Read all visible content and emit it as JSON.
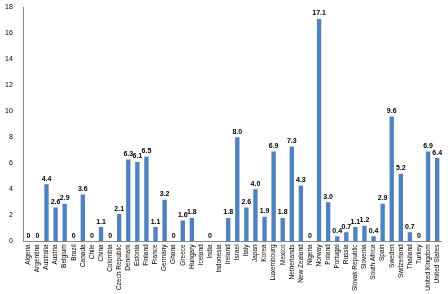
{
  "chart_data": {
    "type": "bar",
    "categories": [
      "Algeria",
      "Argentina",
      "Australia",
      "Austria",
      "Belgium",
      "Brazil",
      "Canada",
      "Chile",
      "China",
      "Colombia",
      "Czech Republic",
      "Denmark",
      "Estonia",
      "Finland",
      "France",
      "Germany",
      "Ghana",
      "Greece",
      "Hungary",
      "Iceland",
      "India",
      "Indonesia",
      "Ireland",
      "Israel",
      "Italy",
      "Japan",
      "Korea",
      "Luxembourg",
      "Mexico",
      "Netherlands",
      "New Zealand",
      "Nigeria",
      "Norway",
      "Poland",
      "Portugal",
      "Russia",
      "Slovak Republic",
      "Slovenia",
      "South Africa",
      "Spain",
      "Sweden",
      "Switzerland",
      "Thailand",
      "Turkey",
      "United Kingdom",
      "United States"
    ],
    "values": [
      0,
      0,
      4.4,
      2.6,
      2.9,
      0,
      3.6,
      0,
      1.1,
      0,
      2.1,
      6.3,
      6.1,
      6.5,
      1.1,
      3.2,
      0,
      1.6,
      1.8,
      null,
      0,
      null,
      1.8,
      8.0,
      2.6,
      4.0,
      1.9,
      6.9,
      1.8,
      7.3,
      4.3,
      0,
      17.1,
      3.0,
      0.4,
      0.7,
      1.1,
      1.2,
      0.4,
      2.9,
      9.6,
      5.2,
      0.7,
      0,
      6.9,
      6.4
    ],
    "value_labels": [
      "0",
      "0",
      "4.4",
      "2.6",
      "2.9",
      "0",
      "3.6",
      "0",
      "1.1",
      "0",
      "2.1",
      "6.3",
      "6.1",
      "6.5",
      "1.1",
      "3.2",
      "0",
      "1.6",
      "1.8",
      null,
      "0",
      null,
      "1.8",
      "8.0",
      "2.6",
      "4.0",
      "1.9",
      "6.9",
      "1.8",
      "7.3",
      "4.3",
      "0",
      "17.1",
      "3.0",
      "0.4",
      "0.7",
      "1.1",
      "1.2",
      "0.4",
      "2.9",
      "9.6",
      "5.2",
      "0.7",
      "0",
      "6.9",
      "6.4"
    ],
    "color": "#4f81bd",
    "ylim": [
      0,
      18
    ],
    "yticks": [
      0,
      2,
      4,
      6,
      8,
      10,
      12,
      14,
      16,
      18
    ],
    "grid": false,
    "data_labels": true
  }
}
